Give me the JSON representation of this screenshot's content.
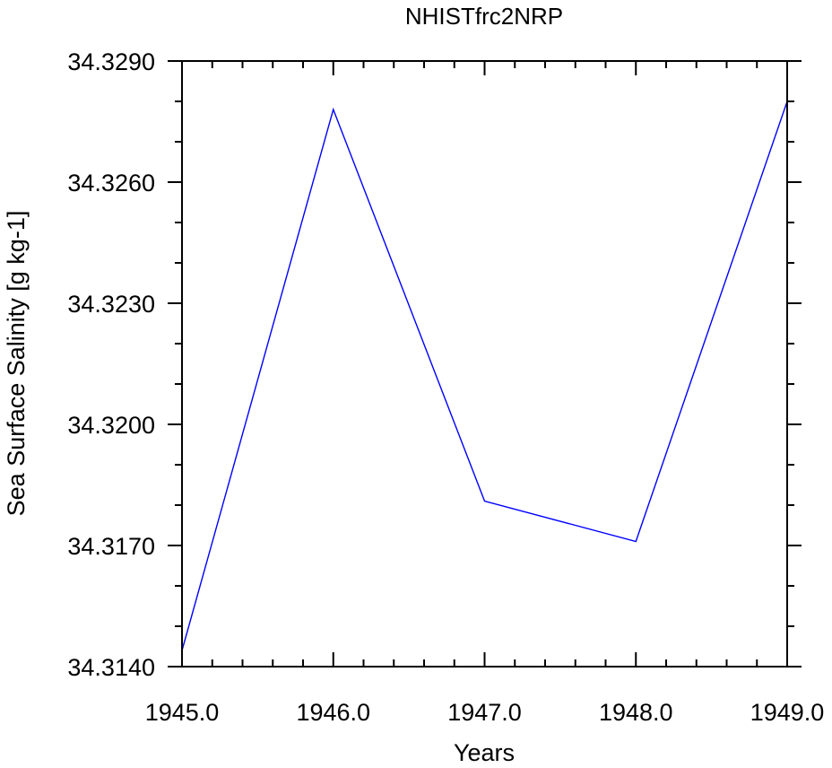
{
  "chart_data": {
    "type": "line",
    "title": "NHISTfrc2NRP",
    "xlabel": "Years",
    "ylabel": "Sea Surface Salinity [g kg-1]",
    "xlim": [
      1945.0,
      1949.0
    ],
    "ylim": [
      34.314,
      34.329
    ],
    "x_ticks": [
      "1945.0",
      "1946.0",
      "1947.0",
      "1948.0",
      "1949.0"
    ],
    "x_tick_values": [
      1945.0,
      1946.0,
      1947.0,
      1948.0,
      1949.0
    ],
    "y_ticks": [
      "34.3140",
      "34.3170",
      "34.3200",
      "34.3230",
      "34.3260",
      "34.3290"
    ],
    "y_tick_values": [
      34.314,
      34.317,
      34.32,
      34.323,
      34.326,
      34.329
    ],
    "grid": false,
    "series": [
      {
        "color": "#0000ff",
        "x": [
          1945.0,
          1946.0,
          1947.0,
          1948.0,
          1949.0
        ],
        "values": [
          34.3144,
          34.3278,
          34.3181,
          34.3171,
          34.328
        ]
      }
    ]
  }
}
